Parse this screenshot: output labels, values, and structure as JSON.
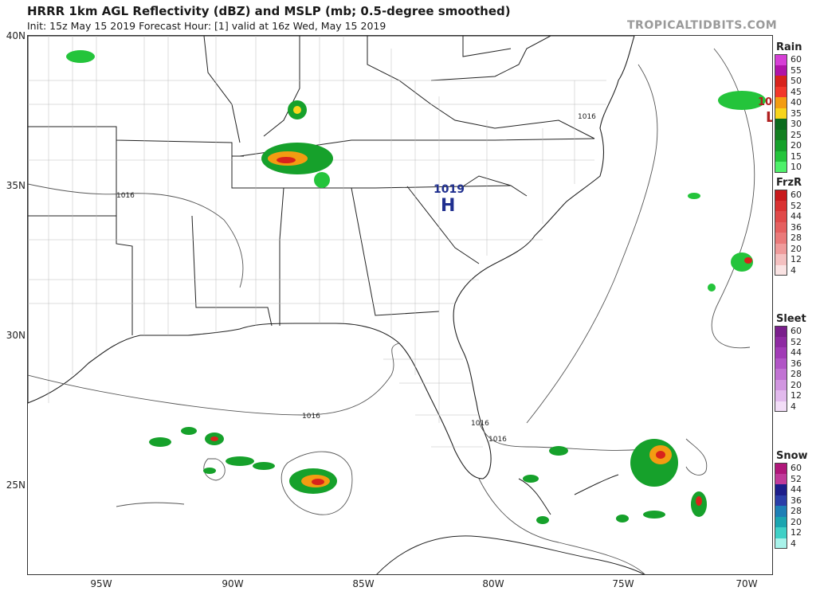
{
  "header": {
    "title": "HRRR 1km AGL Reflectivity (dBZ) and MSLP (mb; 0.5-degree smoothed)",
    "subtitle": "Init: 15z May 15 2019   Forecast Hour: [1]   valid at 16z Wed, May 15 2019",
    "watermark": "TROPICALTIDBITS.COM"
  },
  "map": {
    "latitude_labels": [
      "40N",
      "35N",
      "30N",
      "25N"
    ],
    "longitude_labels": [
      "95W",
      "90W",
      "85W",
      "80W",
      "75W",
      "70W"
    ],
    "isobar_labels": [
      "1016",
      "1016",
      "1016",
      "1016",
      "1016"
    ],
    "pressure_centers": [
      {
        "type": "H",
        "value": "1019",
        "color": "#1f2f8f"
      },
      {
        "type": "L",
        "value": "10",
        "color": "#b02020"
      }
    ]
  },
  "legends": [
    {
      "name": "Rain",
      "levels": [
        "60",
        "55",
        "50",
        "45",
        "40",
        "35",
        "30",
        "25",
        "20",
        "15",
        "10"
      ],
      "colors": [
        "#d63fd6",
        "#b014a8",
        "#d8231c",
        "#f2382a",
        "#f39c12",
        "#f7d51c",
        "#0b6b1e",
        "#137f21",
        "#16a12b",
        "#24c43b",
        "#4ef06a"
      ]
    },
    {
      "name": "FrzR",
      "levels": [
        "60",
        "52",
        "44",
        "36",
        "28",
        "20",
        "12",
        "4"
      ],
      "colors": [
        "#c8191c",
        "#d93232",
        "#e04a4a",
        "#e56060",
        "#ea7a7a",
        "#ef9b9b",
        "#f4c0c0",
        "#fae3e3"
      ]
    },
    {
      "name": "Sleet",
      "levels": [
        "60",
        "52",
        "44",
        "36",
        "28",
        "20",
        "12",
        "4"
      ],
      "colors": [
        "#7a1f8c",
        "#8e2aa2",
        "#a13bb6",
        "#b155c6",
        "#c173d3",
        "#d196e0",
        "#e2baed",
        "#f2ddf7"
      ]
    },
    {
      "name": "Snow",
      "levels": [
        "60",
        "52",
        "44",
        "36",
        "28",
        "20",
        "12",
        "4"
      ],
      "colors": [
        "#b0177a",
        "#c03a9a",
        "#1d1d8a",
        "#2a3ea8",
        "#1e7fb6",
        "#1ba5b0",
        "#3fd0c6",
        "#a8f2ea"
      ]
    }
  ]
}
